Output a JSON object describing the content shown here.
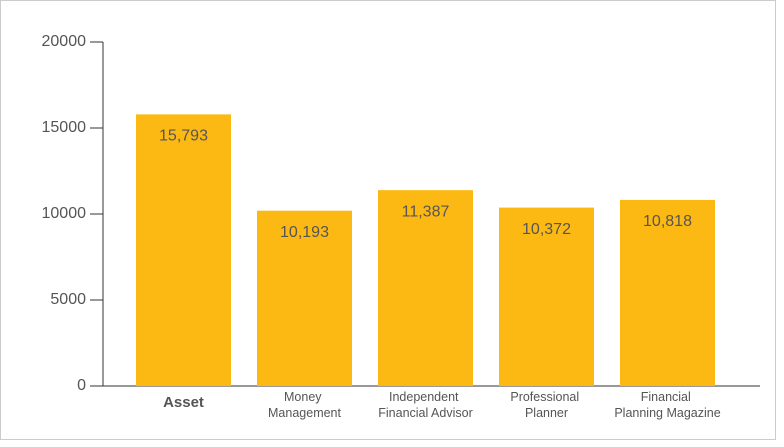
{
  "chart_data": {
    "type": "bar",
    "categories": [
      "Asset",
      "Money Management",
      "Independent Financial Advisor",
      "Professional Planner",
      "Financial Planning Magazine"
    ],
    "values": [
      15793,
      10193,
      11387,
      10372,
      10818
    ],
    "value_labels": [
      "15,793",
      "10,193",
      "11,387",
      "10,372",
      "10,818"
    ],
    "color": "#fdb913",
    "bold_category": 0,
    "ylim": [
      0,
      20000
    ],
    "yticks": [
      0,
      5000,
      10000,
      15000,
      20000
    ],
    "grid": false
  }
}
